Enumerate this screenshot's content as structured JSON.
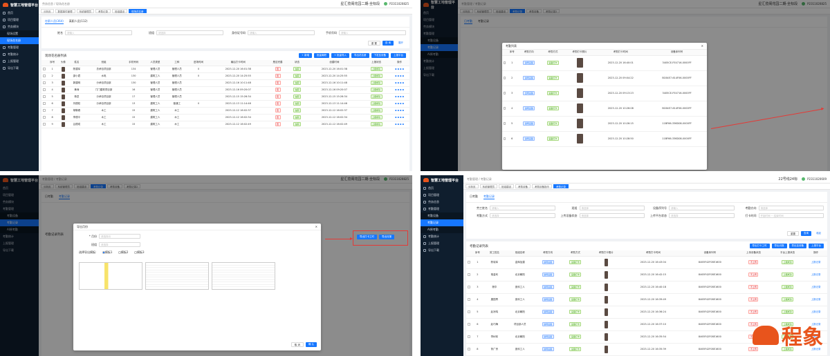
{
  "brand": "智慧工地管理平台",
  "user": "P2311020825",
  "user2": "P2311020609",
  "project": "星汇揽阁花园二期-全标段",
  "project2": "22号线24标",
  "nav1": [
    "首页",
    "项目管理",
    "劳务模块",
    "现场设置",
    "现场花名册",
    "考勤管理",
    "考勤统计",
    "上报管理",
    "导出下载"
  ],
  "nav2": [
    "首页",
    "项目管理",
    "劳务信息",
    "考勤管理",
    "考勤设备",
    "考勤记录",
    "AI原考勤",
    "考勤统计",
    "上报管理",
    "导出下载"
  ],
  "breadcrumb": "劳务信息 / 现场花名册",
  "breadcrumb2": "考勤管理 / 考勤记录",
  "tabs1": [
    "分析页",
    "数据事件管理",
    "系统管理员",
    "考勤记录",
    "班组建设",
    "现场花名册"
  ],
  "tabs2": [
    "分析页",
    "系统管理员",
    "班组建设",
    "考勤记录",
    "考勤设备",
    "考勤记录2"
  ],
  "tabs4": [
    "分析页",
    "系统管理员",
    "班组建设",
    "考勤设备",
    "考勤设备指令",
    "考勤记录"
  ],
  "roster": {
    "subtabs": [
      "在职人员(364)",
      "离职人员(112)"
    ],
    "filters": [
      {
        "l": "姓名",
        "p": "请输入"
      },
      {
        "l": "班组",
        "p": "请选择"
      },
      {
        "l": "身份证号码",
        "p": "请输入"
      },
      {
        "l": "手机号码",
        "p": "请输入"
      }
    ],
    "reset": "重 置",
    "search": "查 询",
    "expand": "展开",
    "title": "现场花名册列表",
    "actions": [
      "+ 新增",
      "批量离职",
      "+ 批量导入",
      "导出花名册",
      "下发至设备",
      "上报平台"
    ],
    "cols": [
      "序号",
      "头像",
      "姓名",
      "班组",
      "手机号码",
      "人员类型",
      "工种",
      "进场时间",
      "最后打卡时间",
      "是否完善",
      "状态",
      "创建时间",
      "上报状态",
      "操作"
    ],
    "rows": [
      [
        "1",
        "陈建军",
        "总承包项目部",
        "134",
        "管理人员",
        "管理人员",
        "0",
        "2023-12-20 16:01:38",
        "否",
        "在职",
        "2023-12-20 16:01:38",
        "上报成功"
      ],
      [
        "2",
        "邵小君",
        "水电",
        "130",
        "建筑工人",
        "管理人员",
        "0",
        "2023-12-20 14:25:55",
        "否",
        "在职",
        "2023-12-20 14:25:55",
        "上报成功"
      ],
      [
        "3",
        "郭建明",
        "分承包项目部",
        "130",
        "管理人员",
        "管理人员",
        "",
        "2023-12-16 10:11:48",
        "否",
        "在职",
        "2023-12-16 10:11:48",
        "上报成功"
      ],
      [
        "4",
        "黄涛",
        "门门建筑项目部",
        "16",
        "管理人员",
        "管理人员",
        "",
        "2023-12-16 09:20:07",
        "否",
        "在职",
        "2023-12-16 09:20:07",
        "上报成功"
      ],
      [
        "5",
        "杨坚",
        "分承包项目部",
        "17",
        "管理人员",
        "管理人员",
        "",
        "2023-12-15 15:26:34",
        "否",
        "在职",
        "2023-12-15 15:26:34",
        "上报成功"
      ],
      [
        "6",
        "刘德权",
        "分承包项目部",
        "13",
        "建筑工人",
        "普通工",
        "0",
        "2023-12-13 11:14:46",
        "否",
        "在职",
        "2023-12-13 11:14:46",
        "上报成功"
      ],
      [
        "7",
        "胡敬峰",
        "木工",
        "15",
        "建筑工人",
        "木工",
        "",
        "2023-12-12 16:02:37",
        "否",
        "在职",
        "2023-12-12 16:02:37",
        "上报成功"
      ],
      [
        "8",
        "李德平",
        "木工",
        "15",
        "建筑工人",
        "木工",
        "",
        "2023-12-12 16:02:34",
        "否",
        "在职",
        "2023-12-12 16:02:34",
        "上报成功"
      ],
      [
        "9",
        "吕德成",
        "木工",
        "15",
        "建筑工人",
        "木工",
        "",
        "2023-12-12 16:02:49",
        "否",
        "在职",
        "2023-12-12 16:02:49",
        "上报成功"
      ]
    ]
  },
  "attmodal": {
    "title": "考勤列表",
    "cols": [
      "",
      "序号",
      "考勤方向",
      "考勤方式",
      "考勤打卡照片",
      "考勤打卡时间",
      "设备序列号"
    ],
    "rows": [
      [
        "1",
        "进场设备",
        "设备打卡",
        "2023-12-20 16:40:01",
        "3405CE-FE4716-0000FF"
      ],
      [
        "2",
        "进场设备",
        "设备打卡",
        "2023-12-20 09:04:22",
        "BC64E7-614F06-0000FF"
      ],
      [
        "3",
        "出场设备",
        "设备打卡",
        "2023-12-20 09:13:23",
        "3405CE-FE4716-0000FF"
      ],
      [
        "4",
        "进场设备",
        "设备打卡",
        "2023-12-20 10:26:08",
        "BC64E7-614F06-0000FF"
      ],
      [
        "5",
        "进场设备",
        "设备打卡",
        "2023-12-20 10:26:15",
        "11BF66-336D08-0000FF"
      ],
      [
        "6",
        "进场设备",
        "设备打卡",
        "2023-12-20 10:28:50",
        "11BF66-336D08-0000FF"
      ]
    ]
  },
  "export": {
    "title": "导出月份",
    "month_label": "* 月份",
    "month_ph": "请选择月",
    "team_label": "班组",
    "team_ph": "请选择",
    "tpl_label": "选择导出模板:",
    "tpls": [
      "模板1",
      "模板2",
      "模板3"
    ],
    "cancel": "取 消",
    "ok": "确 认",
    "btn_a": "导出打卡工时",
    "btn_b": "导出月报"
  },
  "records": {
    "subtabs": [
      "日考勤",
      "考勤记录"
    ],
    "filters": [
      {
        "l": "劳工姓名",
        "p": "请输入"
      },
      {
        "l": "班组",
        "p": "请选择"
      },
      {
        "l": "设备序列号",
        "p": "请输入"
      },
      {
        "l": "考勤方向",
        "p": "请选择"
      },
      {
        "l": "考勤方式",
        "p": "请选择"
      },
      {
        "l": "上传设备状态",
        "p": "请选择"
      },
      {
        "l": "上传平台状态",
        "p": "请选择"
      },
      {
        "l": "打卡时间",
        "p": "开始时间 ~ 结束时间"
      }
    ],
    "reset": "重置",
    "search": "查询",
    "collapse": "收起",
    "title": "考勤记录列表",
    "actions": [
      "导出打卡工时",
      "导出月报",
      "导出至设备",
      "上报平台"
    ],
    "cols": [
      "",
      "序号",
      "劳工姓名",
      "班组名称",
      "考勤方向",
      "考勤方式",
      "考勤打卡照片",
      "考勤打卡时间",
      "设备序列号",
      "上传设备状态",
      "平台上报状态",
      "操作"
    ],
    "rows": [
      [
        "1",
        "陈晓军",
        "金辉加建",
        "进场设备",
        "设备打卡",
        "2023-12-20 16:43:04",
        "8465F42F08E1600",
        "不上传",
        "上报成功",
        "上报记录"
      ],
      [
        "2",
        "胡金利",
        "北京朝阳",
        "进场设备",
        "设备打卡",
        "2023-12-20 16:42:15",
        "8465F42F08E1600",
        "不上传",
        "上报成功",
        "上报记录"
      ],
      [
        "3",
        "杨华",
        "庞科工人",
        "进场设备",
        "设备打卡",
        "2023-12-20 16:40:18",
        "8465F42F08E1600",
        "不上传",
        "上报成功",
        "上报记录"
      ],
      [
        "4",
        "唐国青",
        "庞科工人",
        "进场设备",
        "设备打卡",
        "2023-12-20 16:39:49",
        "8465F42F08E1600",
        "不上传",
        "上报成功",
        "上报记录"
      ],
      [
        "5",
        "赵凉鸣",
        "北京朝阳",
        "进场设备",
        "设备打卡",
        "2023-12-20 16:36:24",
        "8465F42F08E1600",
        "不上传",
        "上报成功",
        "上报记录"
      ],
      [
        "6",
        "赵巧梅",
        "项目部人员",
        "进场设备",
        "设备打卡",
        "2023-12-20 16:37:10",
        "8465F42F08E1600",
        "不上传",
        "上报成功",
        "上报记录"
      ],
      [
        "7",
        "李树军",
        "北京朝阳",
        "进场设备",
        "设备打卡",
        "2023-12-20 16:35:54",
        "8465F42F08E1600",
        "不上传",
        "上报成功",
        "上报记录"
      ],
      [
        "8",
        "鲁广贵",
        "庞科工人",
        "进场设备",
        "设备打卡",
        "2023-12-20 16:35:39",
        "8465F42F08E1600",
        "不上传",
        "上报成功",
        "上报记录"
      ]
    ]
  },
  "watermark": "程象",
  "colors": {
    "primary": "#1677ff",
    "sidebar": "#0f1e2e",
    "accent": "#e8541c",
    "red": "#e53935"
  }
}
